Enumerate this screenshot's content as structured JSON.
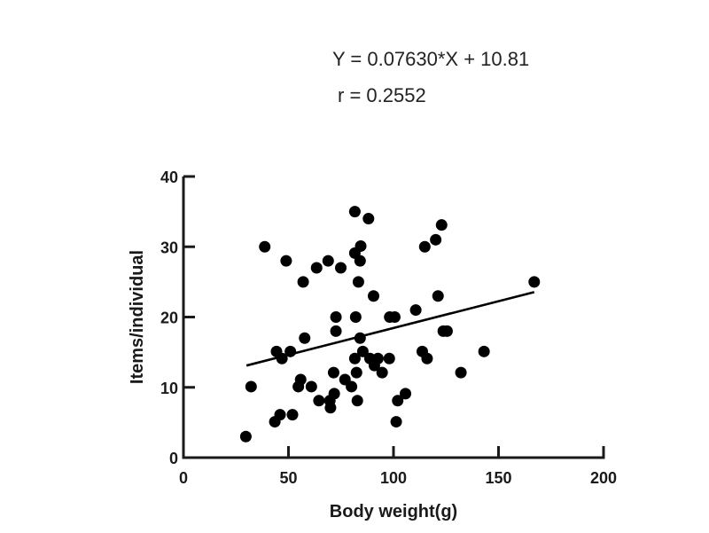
{
  "annotation": {
    "equation": "Y = 0.07630*X + 10.81",
    "r": "r = 0.2552"
  },
  "chart_data": {
    "type": "scatter",
    "title": "",
    "xlabel": "Body weight(g)",
    "ylabel": "Items/individual",
    "xlim": [
      0,
      200
    ],
    "ylim": [
      0,
      40
    ],
    "xticks": [
      0,
      50,
      100,
      150,
      200
    ],
    "yticks": [
      0,
      10,
      20,
      30,
      40
    ],
    "grid": false,
    "legend": null,
    "annotations": [
      "Y = 0.07630*X + 10.81",
      "r = 0.2552"
    ],
    "regression": {
      "slope": 0.0763,
      "intercept": 10.81,
      "r": 0.2552,
      "x_start": 30,
      "x_end": 167
    },
    "points": [
      [
        81.6,
        35.0
      ],
      [
        88.1,
        34.0
      ],
      [
        122.9,
        33.1
      ],
      [
        120.1,
        31.0
      ],
      [
        114.9,
        30.0
      ],
      [
        38.7,
        30.0
      ],
      [
        84.4,
        30.1
      ],
      [
        81.6,
        29.1
      ],
      [
        84.1,
        28.0
      ],
      [
        48.9,
        28.0
      ],
      [
        68.9,
        28.0
      ],
      [
        63.4,
        27.0
      ],
      [
        74.9,
        27.0
      ],
      [
        57.0,
        25.0
      ],
      [
        83.3,
        25.0
      ],
      [
        167.0,
        25.0
      ],
      [
        90.5,
        23.0
      ],
      [
        121.2,
        23.0
      ],
      [
        110.6,
        21.0
      ],
      [
        72.6,
        20.0
      ],
      [
        82.0,
        20.0
      ],
      [
        98.2,
        20.0
      ],
      [
        100.6,
        20.0
      ],
      [
        72.6,
        18.0
      ],
      [
        123.7,
        18.0
      ],
      [
        125.5,
        18.0
      ],
      [
        57.7,
        17.0
      ],
      [
        84.1,
        17.0
      ],
      [
        44.3,
        15.1
      ],
      [
        50.9,
        15.1
      ],
      [
        46.9,
        14.1
      ],
      [
        85.4,
        15.1
      ],
      [
        113.7,
        15.1
      ],
      [
        143.1,
        15.1
      ],
      [
        81.6,
        14.1
      ],
      [
        88.8,
        14.1
      ],
      [
        92.6,
        14.1
      ],
      [
        98.0,
        14.1
      ],
      [
        116.0,
        14.1
      ],
      [
        90.9,
        13.1
      ],
      [
        71.5,
        12.1
      ],
      [
        82.4,
        12.1
      ],
      [
        94.6,
        12.1
      ],
      [
        132.1,
        12.1
      ],
      [
        55.8,
        11.1
      ],
      [
        76.9,
        11.1
      ],
      [
        32.2,
        10.1
      ],
      [
        54.7,
        10.1
      ],
      [
        60.9,
        10.1
      ],
      [
        80.0,
        10.1
      ],
      [
        105.7,
        9.1
      ],
      [
        71.8,
        9.1
      ],
      [
        64.5,
        8.1
      ],
      [
        69.7,
        8.1
      ],
      [
        82.8,
        8.1
      ],
      [
        102.0,
        8.1
      ],
      [
        70.0,
        7.1
      ],
      [
        46.0,
        6.1
      ],
      [
        51.9,
        6.1
      ],
      [
        43.5,
        5.1
      ],
      [
        101.3,
        5.1
      ],
      [
        29.7,
        3.0
      ]
    ]
  },
  "colors": {
    "marker": "#000000",
    "axis": "#1a1a1a",
    "text": "#222222",
    "background": "#ffffff"
  }
}
